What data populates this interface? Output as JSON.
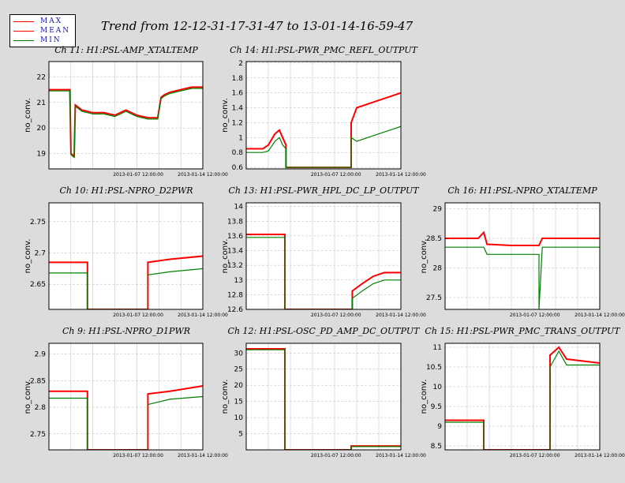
{
  "title": "Trend from 12-12-31-17-31-47 to 13-01-14-16-59-47",
  "legend": [
    {
      "label": "MAX",
      "color": "#ff0000"
    },
    {
      "label": "MEAN",
      "color": "#ff0000"
    },
    {
      "label": "MIN",
      "color": "#008000"
    }
  ],
  "colors": {
    "max": "#ff0000",
    "mean": "#ff0000",
    "min": "#008000",
    "grid": "#bbbbbb"
  },
  "chart_data": [
    {
      "type": "line",
      "title": "Ch 11: H1:PSL-AMP_XTALTEMP",
      "ylabel": "no_conv.",
      "xticks": [
        "2013-01-07 12:00:00",
        "2013-01-14 12:00:00"
      ],
      "x_range": [
        0,
        14
      ],
      "ylim": [
        18.4,
        22.6
      ],
      "yticks": [
        19,
        20,
        21,
        22
      ],
      "ytick_labels": [
        "19",
        "20",
        "21",
        "22"
      ],
      "series": [
        {
          "role": "max",
          "points": [
            [
              0,
              21.5
            ],
            [
              1.9,
              21.5
            ],
            [
              2.0,
              19.0
            ],
            [
              2.3,
              18.9
            ],
            [
              2.4,
              20.9
            ],
            [
              3,
              20.7
            ],
            [
              4,
              20.6
            ],
            [
              5,
              20.6
            ],
            [
              6,
              20.5
            ],
            [
              7,
              20.7
            ],
            [
              8,
              20.5
            ],
            [
              9,
              20.4
            ],
            [
              9.9,
              20.4
            ],
            [
              10.2,
              21.2
            ],
            [
              10.5,
              21.3
            ],
            [
              11,
              21.4
            ],
            [
              12,
              21.5
            ],
            [
              13,
              21.6
            ],
            [
              14,
              21.6
            ]
          ]
        },
        {
          "role": "min",
          "points": [
            [
              0,
              21.45
            ],
            [
              1.9,
              21.45
            ],
            [
              2.0,
              18.95
            ],
            [
              2.3,
              18.85
            ],
            [
              2.4,
              20.85
            ],
            [
              3,
              20.65
            ],
            [
              4,
              20.55
            ],
            [
              5,
              20.55
            ],
            [
              6,
              20.45
            ],
            [
              7,
              20.65
            ],
            [
              8,
              20.45
            ],
            [
              9,
              20.35
            ],
            [
              9.9,
              20.35
            ],
            [
              10.2,
              21.15
            ],
            [
              10.5,
              21.25
            ],
            [
              11,
              21.35
            ],
            [
              12,
              21.45
            ],
            [
              13,
              21.55
            ],
            [
              14,
              21.55
            ]
          ]
        }
      ]
    },
    {
      "type": "line",
      "title": "Ch 14: H1:PSL-PWR_PMC_REFL_OUTPUT",
      "ylabel": "no_conv.",
      "xticks": [
        "2013-01-07 12:00:00",
        "2013-01-14 12:00:00"
      ],
      "x_range": [
        0,
        14
      ],
      "ylim": [
        0.58,
        2.02
      ],
      "yticks": [
        0.6,
        0.8,
        1,
        1.2,
        1.4,
        1.6,
        1.8,
        2
      ],
      "ytick_labels": [
        "0.6",
        "0.8",
        "1",
        "1.2",
        "1.4",
        "1.6",
        "1.8",
        "2"
      ],
      "series": [
        {
          "role": "max",
          "points": [
            [
              0,
              0.85
            ],
            [
              1.5,
              0.85
            ],
            [
              2.0,
              0.9
            ],
            [
              2.6,
              1.05
            ],
            [
              3.0,
              1.1
            ],
            [
              3.3,
              1.0
            ],
            [
              3.6,
              0.9
            ],
            [
              3.6,
              0.6
            ],
            [
              9.5,
              0.6
            ],
            [
              9.5,
              1.2
            ],
            [
              10,
              1.4
            ],
            [
              11,
              1.45
            ],
            [
              12,
              1.5
            ],
            [
              13,
              1.55
            ],
            [
              14,
              1.6
            ]
          ]
        },
        {
          "role": "min",
          "points": [
            [
              0,
              0.8
            ],
            [
              1.5,
              0.8
            ],
            [
              2.0,
              0.82
            ],
            [
              2.6,
              0.95
            ],
            [
              3.0,
              1.0
            ],
            [
              3.3,
              0.9
            ],
            [
              3.6,
              0.85
            ],
            [
              3.6,
              0.6
            ],
            [
              9.5,
              0.6
            ],
            [
              9.5,
              1.0
            ],
            [
              10,
              0.95
            ],
            [
              11,
              1.0
            ],
            [
              12,
              1.05
            ],
            [
              13,
              1.1
            ],
            [
              14,
              1.15
            ]
          ]
        }
      ]
    },
    {
      "type": "line",
      "title": "Ch 10: H1:PSL-NPRO_D2PWR",
      "ylabel": "no_conv.",
      "xticks": [
        "2013-01-07 12:00:00",
        "2013-01-14 12:00:00"
      ],
      "x_range": [
        0,
        14
      ],
      "ylim": [
        2.61,
        2.78
      ],
      "yticks": [
        2.65,
        2.7,
        2.75
      ],
      "ytick_labels": [
        "2.65",
        "2.7",
        "2.75"
      ],
      "series": [
        {
          "role": "max",
          "points": [
            [
              0,
              2.685
            ],
            [
              3.5,
              2.685
            ],
            [
              3.5,
              2.61
            ],
            [
              9.0,
              2.61
            ],
            [
              9.0,
              2.685
            ],
            [
              11,
              2.69
            ],
            [
              14,
              2.695
            ]
          ]
        },
        {
          "role": "min",
          "points": [
            [
              0,
              2.668
            ],
            [
              3.5,
              2.668
            ],
            [
              3.5,
              2.61
            ],
            [
              9.0,
              2.61
            ],
            [
              9.0,
              2.665
            ],
            [
              11,
              2.67
            ],
            [
              14,
              2.675
            ]
          ]
        }
      ]
    },
    {
      "type": "line",
      "title": "Ch 13: H1:PSL-PWR_HPL_DC_LP_OUTPUT",
      "ylabel": "no_conv.",
      "xticks": [
        "2013-01-07 12:00:00",
        "2013-01-14 12:00:00"
      ],
      "x_range": [
        0,
        14
      ],
      "ylim": [
        12.6,
        14.05
      ],
      "yticks": [
        12.6,
        12.8,
        13,
        13.2,
        13.4,
        13.6,
        13.8,
        14
      ],
      "ytick_labels": [
        "12.6",
        "12.8",
        "13",
        "13.2",
        "13.4",
        "13.6",
        "13.8",
        "14"
      ],
      "series": [
        {
          "role": "max",
          "points": [
            [
              0,
              13.62
            ],
            [
              3.5,
              13.62
            ],
            [
              3.5,
              12.6
            ],
            [
              9.6,
              12.6
            ],
            [
              9.6,
              12.85
            ],
            [
              10.5,
              12.95
            ],
            [
              11.5,
              13.05
            ],
            [
              12.5,
              13.1
            ],
            [
              14,
              13.1
            ]
          ]
        },
        {
          "role": "min",
          "points": [
            [
              0,
              13.58
            ],
            [
              3.5,
              13.58
            ],
            [
              3.5,
              12.6
            ],
            [
              9.6,
              12.6
            ],
            [
              9.6,
              12.75
            ],
            [
              10.5,
              12.85
            ],
            [
              11.5,
              12.95
            ],
            [
              12.5,
              13.0
            ],
            [
              14,
              13.0
            ]
          ]
        }
      ]
    },
    {
      "type": "line",
      "title": "Ch 16: H1:PSL-NPRO_XTALTEMP",
      "ylabel": "no_conv.",
      "xticks": [
        "2013-01-07 12:00:00",
        "2013-01-14 12:00:00"
      ],
      "x_range": [
        0,
        14
      ],
      "ylim": [
        27.3,
        29.1
      ],
      "yticks": [
        27.5,
        28,
        28.5,
        29
      ],
      "ytick_labels": [
        "27.5",
        "28",
        "28.5",
        "29"
      ],
      "series": [
        {
          "role": "max",
          "points": [
            [
              0,
              28.5
            ],
            [
              3,
              28.5
            ],
            [
              3.5,
              28.6
            ],
            [
              3.8,
              28.4
            ],
            [
              6,
              28.38
            ],
            [
              8.5,
              28.38
            ],
            [
              8.8,
              28.5
            ],
            [
              14,
              28.5
            ]
          ]
        },
        {
          "role": "min",
          "points": [
            [
              0,
              28.35
            ],
            [
              3.5,
              28.35
            ],
            [
              3.8,
              28.23
            ],
            [
              6,
              28.23
            ],
            [
              8.5,
              28.23
            ],
            [
              8.5,
              27.3
            ],
            [
              8.8,
              28.35
            ],
            [
              14,
              28.35
            ]
          ]
        }
      ]
    },
    {
      "type": "line",
      "title": "Ch 9: H1:PSL-NPRO_D1PWR",
      "ylabel": "no_conv.",
      "xticks": [
        "2013-01-07 12:00:00",
        "2013-01-14 12:00:00"
      ],
      "x_range": [
        0,
        14
      ],
      "ylim": [
        2.72,
        2.92
      ],
      "yticks": [
        2.75,
        2.8,
        2.85,
        2.9
      ],
      "ytick_labels": [
        "2.75",
        "2.8",
        "2.85",
        "2.9"
      ],
      "series": [
        {
          "role": "max",
          "points": [
            [
              0,
              2.83
            ],
            [
              3.5,
              2.83
            ],
            [
              3.5,
              2.72
            ],
            [
              9.0,
              2.72
            ],
            [
              9.0,
              2.825
            ],
            [
              11,
              2.83
            ],
            [
              14,
              2.84
            ]
          ]
        },
        {
          "role": "min",
          "points": [
            [
              0,
              2.817
            ],
            [
              3.5,
              2.817
            ],
            [
              3.5,
              2.72
            ],
            [
              9.0,
              2.72
            ],
            [
              9.0,
              2.805
            ],
            [
              11,
              2.815
            ],
            [
              14,
              2.82
            ]
          ]
        }
      ]
    },
    {
      "type": "line",
      "title": "Ch 12: H1:PSL-OSC_PD_AMP_DC_OUTPUT",
      "ylabel": "no_conv.",
      "xticks": [
        "2013-01-07 12:00:00",
        "2013-01-14 12:00:00"
      ],
      "x_range": [
        0,
        14
      ],
      "ylim": [
        0,
        33
      ],
      "yticks": [
        5,
        10,
        15,
        20,
        25,
        30
      ],
      "ytick_labels": [
        "5",
        "10",
        "15",
        "20",
        "25",
        "30"
      ],
      "series": [
        {
          "role": "max",
          "points": [
            [
              0,
              31.3
            ],
            [
              3.5,
              31.3
            ],
            [
              3.5,
              0
            ],
            [
              9.5,
              0
            ],
            [
              9.5,
              1.2
            ],
            [
              14,
              1.2
            ]
          ]
        },
        {
          "role": "min",
          "points": [
            [
              0,
              31.0
            ],
            [
              3.5,
              31.0
            ],
            [
              3.5,
              0
            ],
            [
              9.5,
              0
            ],
            [
              9.5,
              1.0
            ],
            [
              14,
              1.0
            ]
          ]
        }
      ]
    },
    {
      "type": "line",
      "title": "Ch 15: H1:PSL-PWR_PMC_TRANS_OUTPUT",
      "ylabel": "no_conv.",
      "xticks": [
        "2013-01-07 12:00:00",
        "2013-01-14 12:00:00"
      ],
      "x_range": [
        0,
        14
      ],
      "ylim": [
        8.4,
        11.1
      ],
      "yticks": [
        8.5,
        9,
        9.5,
        10,
        10.5,
        11
      ],
      "ytick_labels": [
        "8.5",
        "9",
        "9.5",
        "10",
        "10.5",
        "11"
      ],
      "series": [
        {
          "role": "max",
          "points": [
            [
              0,
              9.15
            ],
            [
              3.5,
              9.15
            ],
            [
              3.5,
              8.4
            ],
            [
              9.5,
              8.4
            ],
            [
              9.5,
              10.8
            ],
            [
              10.3,
              11.0
            ],
            [
              11,
              10.7
            ],
            [
              14,
              10.6
            ]
          ]
        },
        {
          "role": "min",
          "points": [
            [
              0,
              9.1
            ],
            [
              3.5,
              9.1
            ],
            [
              3.5,
              8.4
            ],
            [
              9.5,
              8.4
            ],
            [
              9.5,
              10.5
            ],
            [
              10.3,
              10.9
            ],
            [
              11,
              10.55
            ],
            [
              14,
              10.55
            ]
          ]
        }
      ]
    }
  ]
}
